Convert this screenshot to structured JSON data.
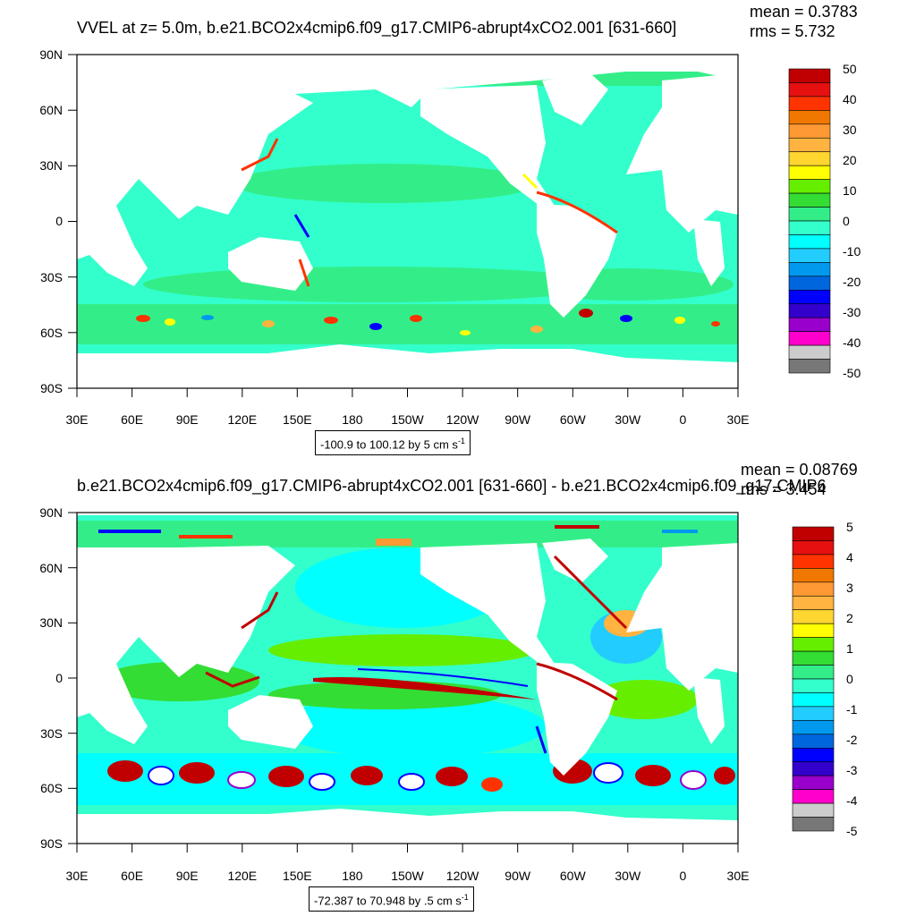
{
  "chart_data": [
    {
      "type": "heatmap",
      "title": "VVEL at z=   5.0m, b.e21.BCO2x4cmip6.f09_g17.CMIP6-abrupt4xCO2.001 [631-660]",
      "stats": {
        "mean": "mean = 0.3783",
        "rms": "rms = 5.732"
      },
      "x_ticks": [
        "30E",
        "60E",
        "90E",
        "120E",
        "150E",
        "180",
        "150W",
        "120W",
        "90W",
        "60W",
        "30W",
        "0",
        "30E"
      ],
      "y_ticks": [
        "90N",
        "60N",
        "30N",
        "0",
        "30S",
        "60S",
        "90S"
      ],
      "xlim": [
        30,
        390
      ],
      "ylim": [
        -90,
        90
      ],
      "range_text": "-100.9 to 100.12 by 5 cm s",
      "range_sup": "-1",
      "colorbar": {
        "labels": [
          "50",
          "40",
          "30",
          "20",
          "10",
          "0",
          "-10",
          "-20",
          "-30",
          "-40",
          "-50"
        ],
        "colors": [
          "#c00000",
          "#e61010",
          "#ff3300",
          "#f07800",
          "#ff9933",
          "#ffb340",
          "#ffd530",
          "#ffff00",
          "#66ee00",
          "#33dd33",
          "#33ee88",
          "#33ffcc",
          "#00ffff",
          "#22ccff",
          "#0099ee",
          "#0066dd",
          "#0000ff",
          "#3300cc",
          "#9900cc",
          "#ff00cc",
          "#cccccc",
          "#777777"
        ]
      }
    },
    {
      "type": "heatmap",
      "title": "b.e21.BCO2x4cmip6.f09_g17.CMIP6-abrupt4xCO2.001 [631-660] - b.e21.BCO2x4cmip6.f09_g17.CMIP6",
      "stats": {
        "mean": "mean = 0.08769",
        "rms": "rms = 3.454"
      },
      "x_ticks": [
        "30E",
        "60E",
        "90E",
        "120E",
        "150E",
        "180",
        "150W",
        "120W",
        "90W",
        "60W",
        "30W",
        "0",
        "30E"
      ],
      "y_ticks": [
        "90N",
        "60N",
        "30N",
        "0",
        "30S",
        "60S",
        "90S"
      ],
      "xlim": [
        30,
        390
      ],
      "ylim": [
        -90,
        90
      ],
      "range_text": "-72.387 to 70.948 by .5 cm s",
      "range_sup": "-1",
      "colorbar": {
        "labels": [
          "5",
          "4",
          "3",
          "2",
          "1",
          "0",
          "-1",
          "-2",
          "-3",
          "-4",
          "-5"
        ],
        "colors": [
          "#c00000",
          "#e61010",
          "#ff3300",
          "#f07800",
          "#ff9933",
          "#ffb340",
          "#ffd530",
          "#ffff00",
          "#66ee00",
          "#33dd33",
          "#33ee88",
          "#33ffcc",
          "#00ffff",
          "#22ccff",
          "#0099ee",
          "#0066dd",
          "#0000ff",
          "#3300cc",
          "#9900cc",
          "#ff00cc",
          "#cccccc",
          "#777777"
        ]
      }
    }
  ]
}
